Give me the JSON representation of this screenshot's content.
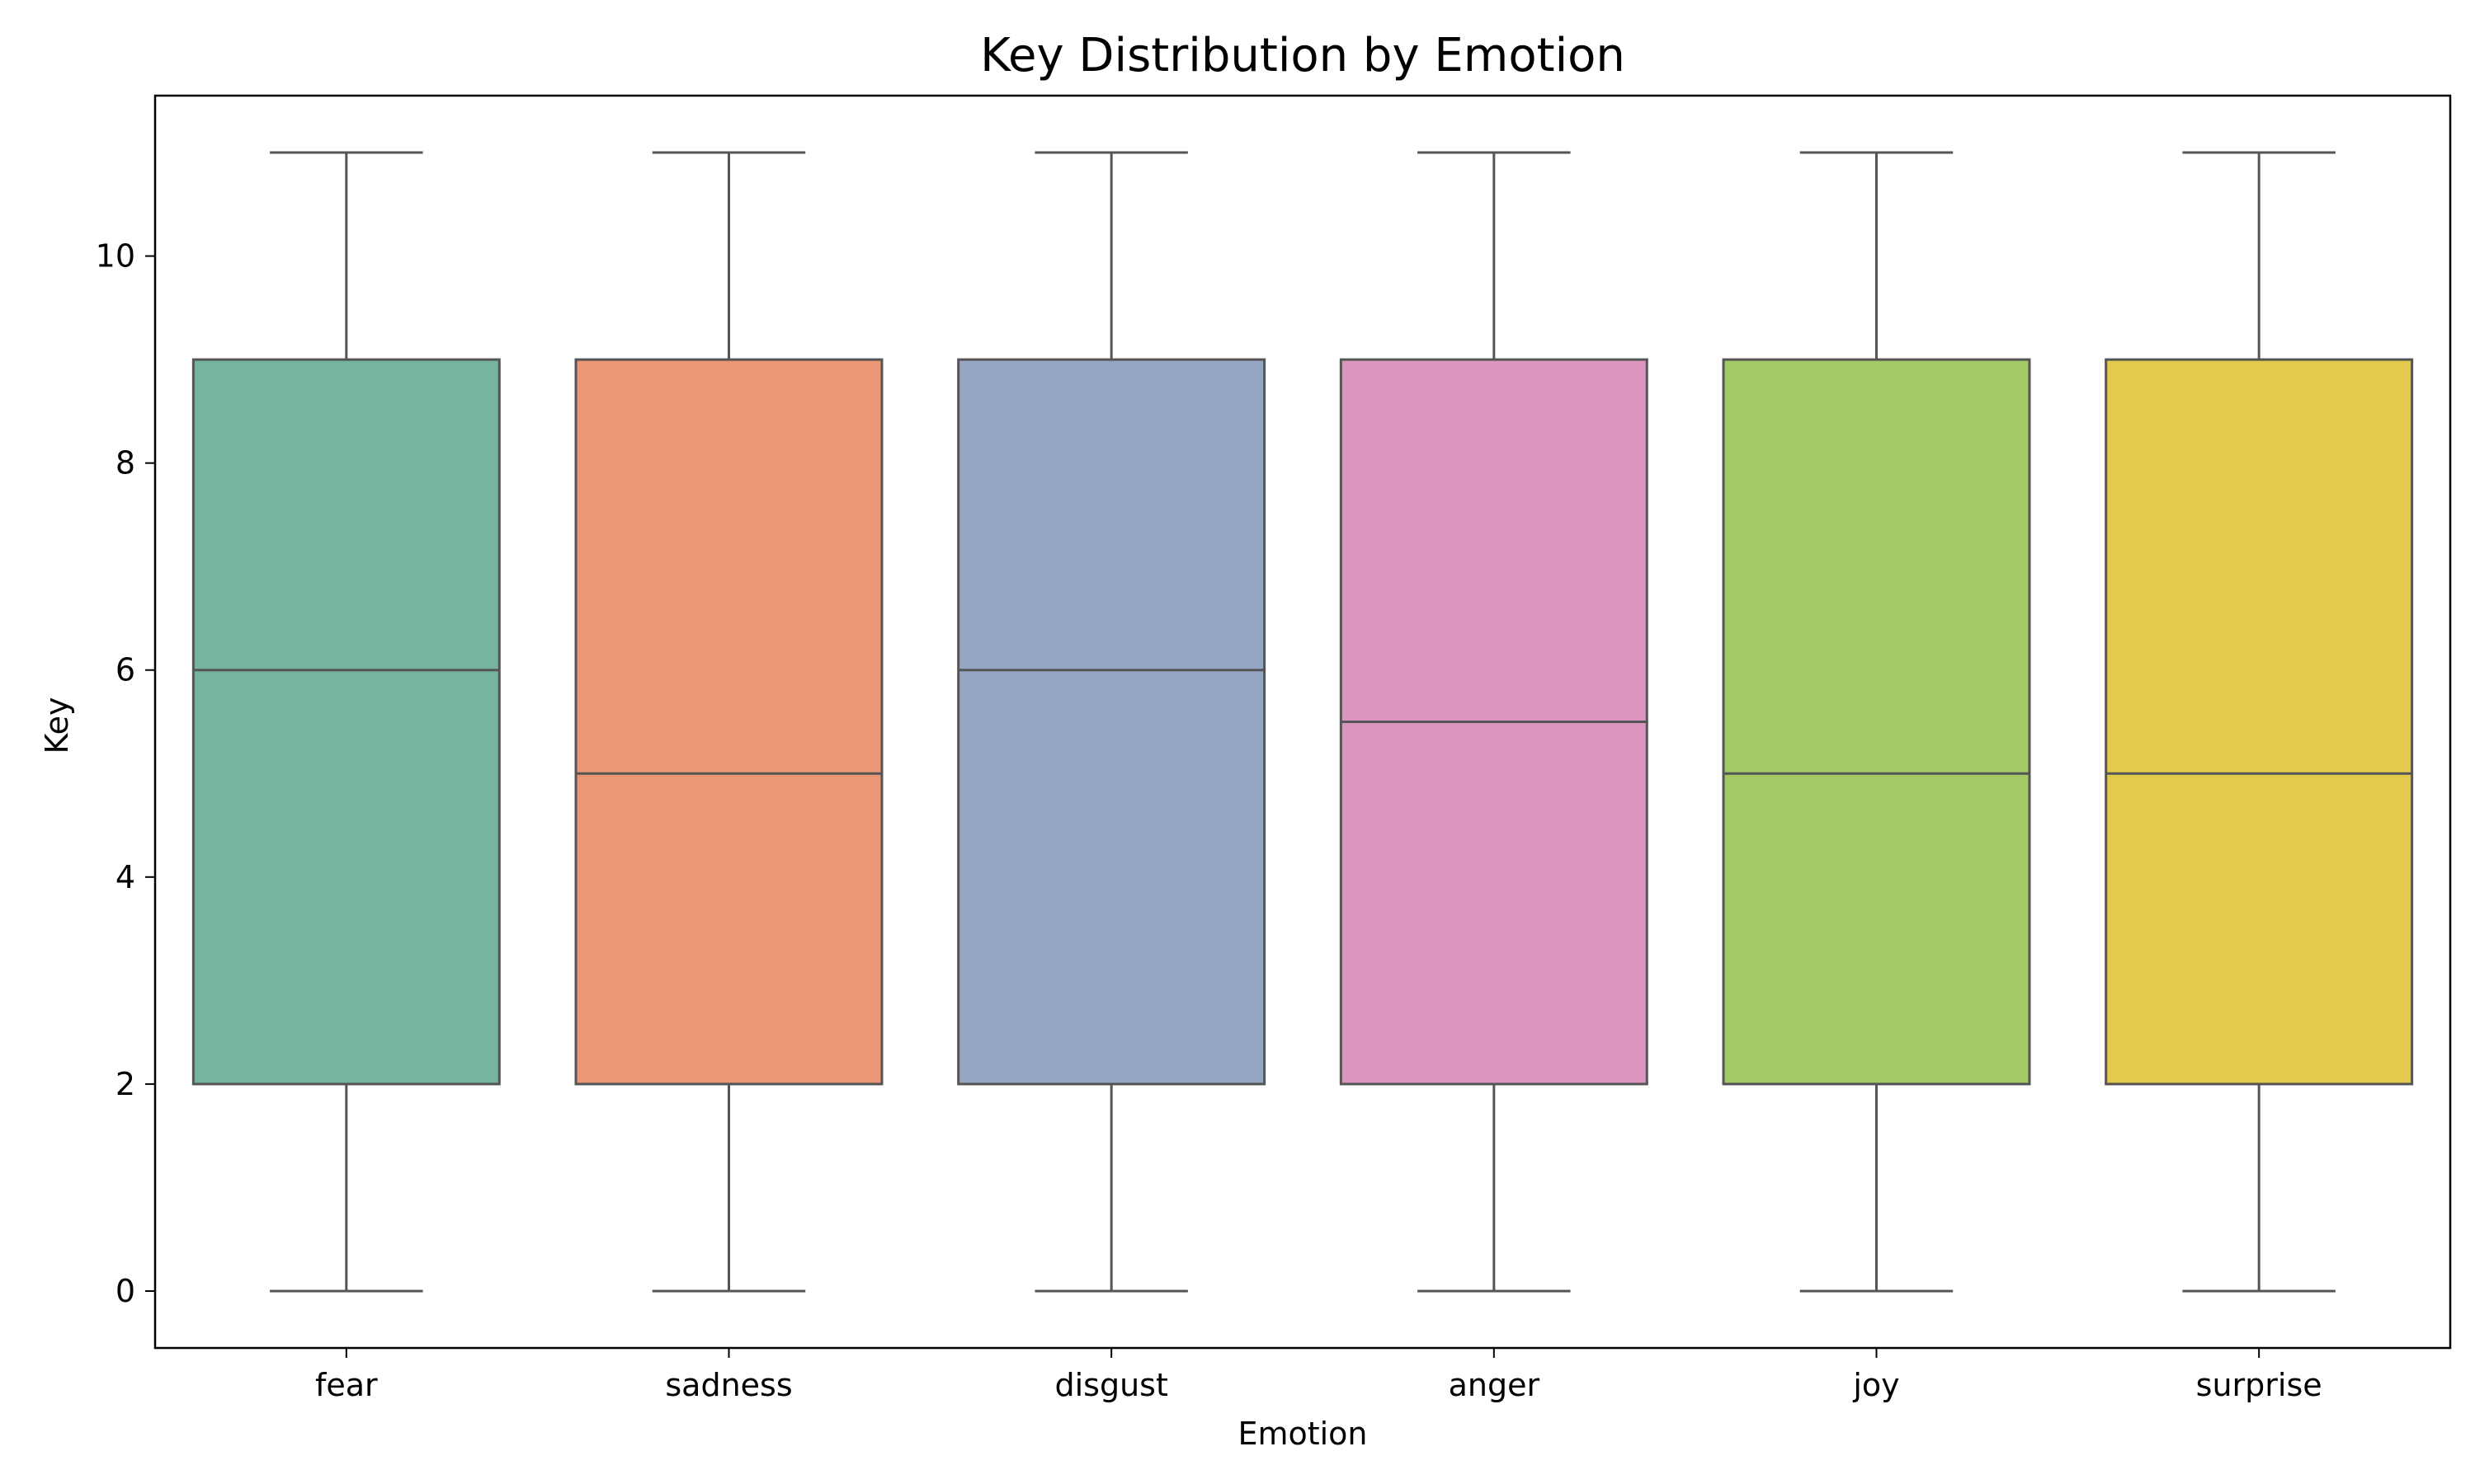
{
  "chart_data": {
    "type": "boxplot",
    "title": "Key Distribution by Emotion",
    "xlabel": "Emotion",
    "ylabel": "Key",
    "ylim": [
      -0.55,
      11.55
    ],
    "yticks": [
      0,
      2,
      4,
      6,
      8,
      10
    ],
    "grid": false,
    "legend": "none",
    "categories": [
      "fear",
      "sadness",
      "disgust",
      "anger",
      "joy",
      "surprise"
    ],
    "series": [
      {
        "category": "fear",
        "min": 0,
        "q1": 2,
        "median": 6,
        "q3": 9,
        "max": 11,
        "color": "#75b5a0"
      },
      {
        "category": "sadness",
        "min": 0,
        "q1": 2,
        "median": 5,
        "q3": 9,
        "max": 11,
        "color": "#e99774"
      },
      {
        "category": "disgust",
        "min": 0,
        "q1": 2,
        "median": 6,
        "q3": 9,
        "max": 11,
        "color": "#95a5c4"
      },
      {
        "category": "anger",
        "min": 0,
        "q1": 2,
        "median": 5.5,
        "q3": 9,
        "max": 11,
        "color": "#dc95bf"
      },
      {
        "category": "joy",
        "min": 0,
        "q1": 2,
        "median": 5,
        "q3": 9,
        "max": 11,
        "color": "#a3c866"
      },
      {
        "category": "surprise",
        "min": 0,
        "q1": 2,
        "median": 5,
        "q3": 9,
        "max": 11,
        "color": "#e3ca4c"
      }
    ],
    "line_color": "#555555"
  }
}
